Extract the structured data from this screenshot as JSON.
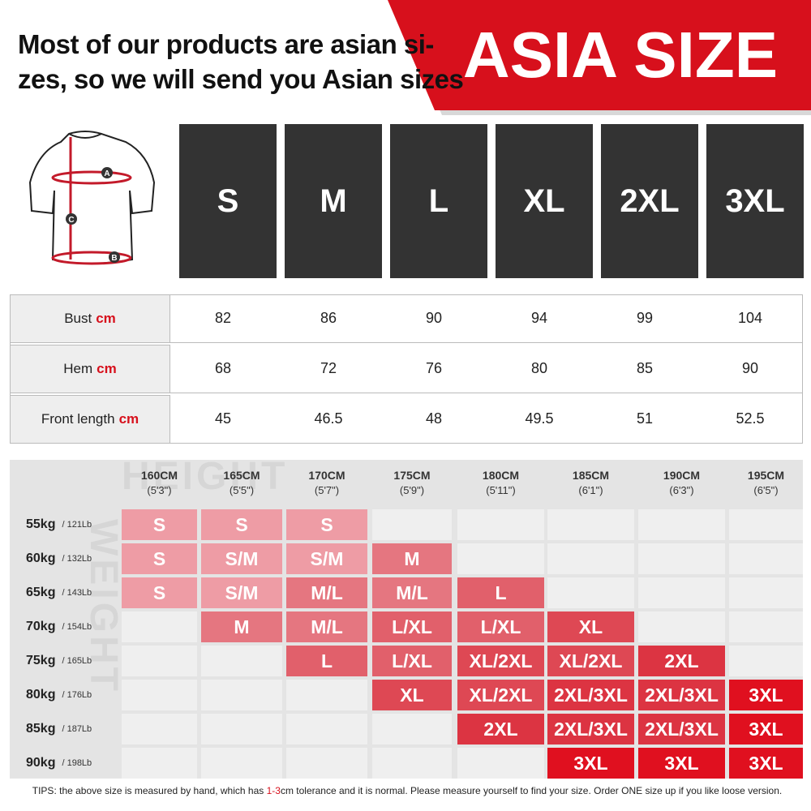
{
  "header": {
    "lines": [
      "Most of our products are asian si-",
      "zes, so we will send you Asian sizes"
    ],
    "badge": "ASIA SIZE"
  },
  "diagram": {
    "labels": [
      "A",
      "C",
      "B"
    ]
  },
  "sizes": [
    "S",
    "M",
    "L",
    "XL",
    "2XL",
    "3XL"
  ],
  "measurements": [
    {
      "label": "Bust",
      "unit": "cm",
      "values": [
        82,
        86,
        90,
        94,
        99,
        104
      ]
    },
    {
      "label": "Hem",
      "unit": "cm",
      "values": [
        68,
        72,
        76,
        80,
        85,
        90
      ]
    },
    {
      "label": "Front length",
      "unit": "cm",
      "values": [
        45,
        46.5,
        48,
        49.5,
        51,
        52.5
      ]
    }
  ],
  "fit_chart": {
    "height_watermark": "HEIGHT",
    "weight_watermark": "WEIGHT",
    "heights": [
      {
        "cm": "160CM",
        "ft": "(5'3\")"
      },
      {
        "cm": "165CM",
        "ft": "(5'5\")"
      },
      {
        "cm": "170CM",
        "ft": "(5'7\")"
      },
      {
        "cm": "175CM",
        "ft": "(5'9\")"
      },
      {
        "cm": "180CM",
        "ft": "(5'11\")"
      },
      {
        "cm": "185CM",
        "ft": "(6'1\")"
      },
      {
        "cm": "190CM",
        "ft": "(6'3\")"
      },
      {
        "cm": "195CM",
        "ft": "(6'5\")"
      }
    ],
    "weights": [
      {
        "kg": "55kg",
        "lb": "/ 121Lb",
        "cells": [
          "S",
          "S",
          "S",
          null,
          null,
          null,
          null,
          null
        ]
      },
      {
        "kg": "60kg",
        "lb": "/ 132Lb",
        "cells": [
          "S",
          "S/M",
          "S/M",
          "M",
          null,
          null,
          null,
          null
        ]
      },
      {
        "kg": "65kg",
        "lb": "/ 143Lb",
        "cells": [
          "S",
          "S/M",
          "M/L",
          "M/L",
          "L",
          null,
          null,
          null
        ]
      },
      {
        "kg": "70kg",
        "lb": "/ 154Lb",
        "cells": [
          null,
          "M",
          "M/L",
          "L/XL",
          "L/XL",
          "XL",
          null,
          null
        ]
      },
      {
        "kg": "75kg",
        "lb": "/ 165Lb",
        "cells": [
          null,
          null,
          "L",
          "L/XL",
          "XL/2XL",
          "XL/2XL",
          "2XL",
          null
        ]
      },
      {
        "kg": "80kg",
        "lb": "/ 176Lb",
        "cells": [
          null,
          null,
          null,
          "XL",
          "XL/2XL",
          "2XL/3XL",
          "2XL/3XL",
          "3XL"
        ]
      },
      {
        "kg": "85kg",
        "lb": "/ 187Lb",
        "cells": [
          null,
          null,
          null,
          null,
          "2XL",
          "2XL/3XL",
          "2XL/3XL",
          "3XL"
        ]
      },
      {
        "kg": "90kg",
        "lb": "/ 198Lb",
        "cells": [
          null,
          null,
          null,
          null,
          null,
          "3XL",
          "3XL",
          "3XL"
        ]
      }
    ],
    "cell_colors": {
      "S": "#ee9ca5",
      "S/M": "#ee9ca5",
      "M": "#e57680",
      "M/L": "#e57680",
      "L": "#e1606b",
      "L/XL": "#e1606b",
      "XL": "#de4854",
      "XL/2XL": "#de4854",
      "2XL": "#dc3442",
      "2XL/3XL": "#dc3442",
      "3XL": "#e0101f"
    }
  },
  "tips": {
    "prefix": "TIPS:  the above size is measured by hand, which has ",
    "highlight": "1-3",
    "suffix": "cm tolerance and it is normal. Please measure yourself to find your size. Order ONE size up if you like loose version."
  }
}
